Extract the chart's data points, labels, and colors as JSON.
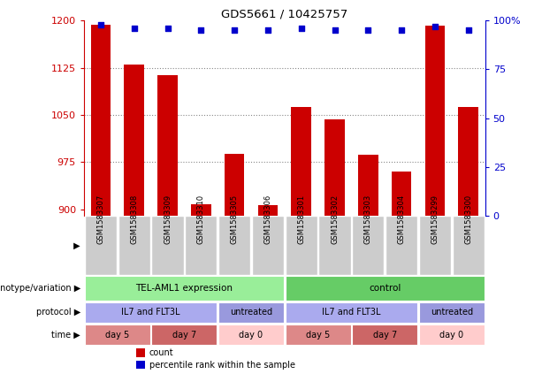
{
  "title": "GDS5661 / 10425757",
  "samples": [
    "GSM1583307",
    "GSM1583308",
    "GSM1583309",
    "GSM1583310",
    "GSM1583305",
    "GSM1583306",
    "GSM1583301",
    "GSM1583302",
    "GSM1583303",
    "GSM1583304",
    "GSM1583299",
    "GSM1583300"
  ],
  "counts": [
    1193,
    1130,
    1113,
    908,
    988,
    906,
    1063,
    1043,
    987,
    960,
    1192,
    1063
  ],
  "percentiles": [
    98,
    96,
    96,
    95,
    95,
    95,
    96,
    95,
    95,
    95,
    97,
    95
  ],
  "ylim_left": [
    890,
    1200
  ],
  "ylim_right": [
    0,
    100
  ],
  "yticks_left": [
    900,
    975,
    1050,
    1125,
    1200
  ],
  "yticks_right": [
    0,
    25,
    50,
    75,
    100
  ],
  "bar_color": "#cc0000",
  "dot_color": "#0000cc",
  "grid_color": "#888888",
  "axis_left_color": "#cc0000",
  "axis_right_color": "#0000cc",
  "sample_cell_color": "#cccccc",
  "genotype_groups": [
    {
      "label": "TEL-AML1 expression",
      "start": 0,
      "end": 6,
      "color": "#99ee99"
    },
    {
      "label": "control",
      "start": 6,
      "end": 12,
      "color": "#66cc66"
    }
  ],
  "protocol_groups": [
    {
      "label": "IL7 and FLT3L",
      "start": 0,
      "end": 4,
      "color": "#aaaaee"
    },
    {
      "label": "untreated",
      "start": 4,
      "end": 6,
      "color": "#9999dd"
    },
    {
      "label": "IL7 and FLT3L",
      "start": 6,
      "end": 10,
      "color": "#aaaaee"
    },
    {
      "label": "untreated",
      "start": 10,
      "end": 12,
      "color": "#9999dd"
    }
  ],
  "time_groups": [
    {
      "label": "day 5",
      "start": 0,
      "end": 2,
      "color": "#dd8888"
    },
    {
      "label": "day 7",
      "start": 2,
      "end": 4,
      "color": "#cc6666"
    },
    {
      "label": "day 0",
      "start": 4,
      "end": 6,
      "color": "#ffcccc"
    },
    {
      "label": "day 5",
      "start": 6,
      "end": 8,
      "color": "#dd8888"
    },
    {
      "label": "day 7",
      "start": 8,
      "end": 10,
      "color": "#cc6666"
    },
    {
      "label": "day 0",
      "start": 10,
      "end": 12,
      "color": "#ffcccc"
    }
  ],
  "row_labels": [
    "genotype/variation",
    "protocol",
    "time"
  ],
  "legend_items": [
    {
      "label": "count",
      "color": "#cc0000"
    },
    {
      "label": "percentile rank within the sample",
      "color": "#0000cc"
    }
  ]
}
